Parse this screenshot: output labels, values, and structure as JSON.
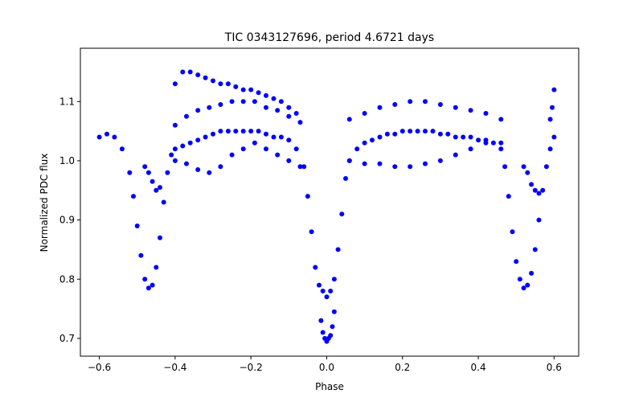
{
  "chart_data": {
    "type": "scatter",
    "title": "TIC 0343127696, period 4.6721 days",
    "xlabel": "Phase",
    "ylabel": "Normalized PDC flux",
    "xlim": [
      -0.65,
      0.665
    ],
    "ylim": [
      0.67,
      1.19
    ],
    "xticks": [
      -0.6,
      -0.4,
      -0.2,
      0.0,
      0.2,
      0.4,
      0.6
    ],
    "xtick_labels": [
      "−0.6",
      "−0.4",
      "−0.2",
      "0.0",
      "0.2",
      "0.4",
      "0.6"
    ],
    "yticks": [
      0.7,
      0.8,
      0.9,
      1.0,
      1.1
    ],
    "ytick_labels": [
      "0.7",
      "0.8",
      "0.9",
      "1.0",
      "1.1"
    ],
    "grid": false,
    "legend": "none",
    "marker_color": "#0000ff",
    "series": [
      {
        "x": [
          -0.6,
          -0.58,
          -0.56,
          -0.54,
          -0.52,
          -0.51,
          -0.5,
          -0.49,
          -0.48,
          -0.47,
          -0.46,
          -0.45,
          -0.44,
          -0.43,
          -0.42,
          -0.41,
          -0.4,
          -0.38,
          -0.36,
          -0.34,
          -0.32,
          -0.3,
          -0.28,
          -0.26,
          -0.24,
          -0.22,
          -0.2,
          -0.18,
          -0.16,
          -0.14,
          -0.12,
          -0.1,
          -0.08,
          -0.06,
          -0.05,
          -0.04,
          -0.03,
          -0.02,
          -0.01,
          0.0,
          0.01,
          0.02,
          0.03,
          0.04,
          0.05,
          0.06,
          0.08,
          0.1,
          0.12,
          0.14,
          0.16,
          0.18,
          0.2,
          0.22,
          0.24,
          0.26,
          0.28,
          0.3,
          0.32,
          0.34,
          0.36,
          0.38,
          0.4,
          0.42,
          0.44,
          0.46,
          0.47,
          0.48,
          0.49,
          0.5,
          0.51,
          0.52,
          0.53,
          0.54,
          0.55,
          0.56,
          0.57,
          0.58,
          0.59,
          0.6
        ],
        "y": [
          1.04,
          1.045,
          1.04,
          1.02,
          0.98,
          0.94,
          0.89,
          0.84,
          0.8,
          0.785,
          0.79,
          0.82,
          0.87,
          0.93,
          0.98,
          1.01,
          1.02,
          1.025,
          1.03,
          1.035,
          1.04,
          1.045,
          1.05,
          1.05,
          1.05,
          1.05,
          1.05,
          1.05,
          1.045,
          1.04,
          1.04,
          1.035,
          1.02,
          0.99,
          0.94,
          0.88,
          0.82,
          0.79,
          0.78,
          0.77,
          0.78,
          0.8,
          0.85,
          0.91,
          0.97,
          1.0,
          1.02,
          1.03,
          1.035,
          1.04,
          1.045,
          1.045,
          1.05,
          1.05,
          1.05,
          1.05,
          1.05,
          1.045,
          1.045,
          1.04,
          1.04,
          1.04,
          1.035,
          1.035,
          1.03,
          1.02,
          0.99,
          0.94,
          0.88,
          0.83,
          0.8,
          0.785,
          0.79,
          0.81,
          0.85,
          0.9,
          0.95,
          0.99,
          1.02,
          1.04
        ]
      },
      {
        "x": [
          -0.4,
          -0.38,
          -0.36,
          -0.34,
          -0.32,
          -0.3,
          -0.28,
          -0.26,
          -0.24,
          -0.22,
          -0.2,
          -0.18,
          -0.16,
          -0.14,
          -0.12,
          -0.1,
          -0.08
        ],
        "y": [
          1.13,
          1.15,
          1.15,
          1.145,
          1.14,
          1.135,
          1.13,
          1.13,
          1.125,
          1.12,
          1.12,
          1.115,
          1.11,
          1.105,
          1.1,
          1.09,
          1.08
        ]
      },
      {
        "x": [
          -0.4,
          -0.37,
          -0.34,
          -0.31,
          -0.28,
          -0.25,
          -0.22,
          -0.19,
          -0.16,
          -0.13,
          -0.1,
          -0.07
        ],
        "y": [
          1.06,
          1.075,
          1.085,
          1.09,
          1.095,
          1.1,
          1.1,
          1.1,
          1.09,
          1.085,
          1.075,
          1.065
        ]
      },
      {
        "x": [
          -0.4,
          -0.37,
          -0.34,
          -0.31,
          -0.28,
          -0.25,
          -0.22,
          -0.19,
          -0.16,
          -0.13,
          -0.1,
          -0.07
        ],
        "y": [
          1.0,
          0.995,
          0.985,
          0.98,
          0.99,
          1.01,
          1.02,
          1.03,
          1.02,
          1.01,
          1.0,
          0.99
        ]
      },
      {
        "x": [
          0.06,
          0.1,
          0.14,
          0.18,
          0.22,
          0.26,
          0.3,
          0.34,
          0.38,
          0.42,
          0.46
        ],
        "y": [
          1.07,
          1.08,
          1.09,
          1.095,
          1.1,
          1.1,
          1.095,
          1.09,
          1.085,
          1.08,
          1.07
        ]
      },
      {
        "x": [
          0.06,
          0.1,
          0.14,
          0.18,
          0.22,
          0.26,
          0.3,
          0.34,
          0.38,
          0.42,
          0.46
        ],
        "y": [
          1.0,
          0.995,
          0.995,
          0.99,
          0.99,
          0.995,
          1.0,
          1.01,
          1.02,
          1.03,
          1.03
        ]
      },
      {
        "x": [
          -0.48,
          -0.47,
          -0.46,
          -0.45,
          -0.44,
          0.52,
          0.53,
          0.54,
          0.55,
          0.56
        ],
        "y": [
          0.99,
          0.98,
          0.965,
          0.95,
          0.955,
          0.99,
          0.98,
          0.96,
          0.95,
          0.945
        ]
      },
      {
        "x": [
          -0.015,
          -0.01,
          -0.005,
          0.0,
          0.005,
          0.01,
          0.015,
          0.02
        ],
        "y": [
          0.73,
          0.71,
          0.7,
          0.695,
          0.7,
          0.705,
          0.72,
          0.745
        ]
      },
      {
        "x": [
          0.59,
          0.595,
          0.6
        ],
        "y": [
          1.07,
          1.09,
          1.12
        ]
      }
    ]
  }
}
